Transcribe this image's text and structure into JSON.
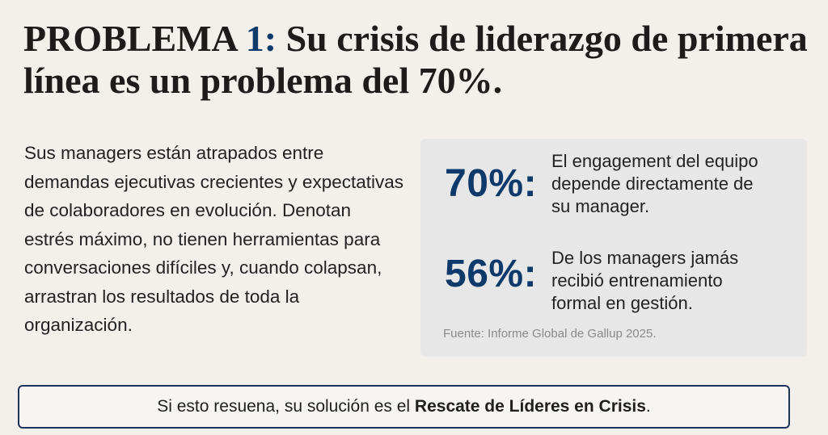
{
  "title": {
    "prefix": "PROBLEMA ",
    "number": "1:",
    "rest": " Su crisis de liderazgo de primera línea es un problema del 70%."
  },
  "body": "Sus managers están atrapados entre demandas ejecutivas crecientes y expectativas de colaboradores en evolución. Denotan estrés máximo, no tienen herramientas para conversaciones difíciles y, cuando colapsan, arrastran los resultados de toda la organización.",
  "stats": [
    {
      "value": "70%:",
      "description": "El engagement del equipo depende directamente de su manager."
    },
    {
      "value": "56%:",
      "description": "De los managers jamás recibió entrenamiento formal en gestión."
    }
  ],
  "source": "Fuente: Informe Global de Gallup 2025.",
  "cta": {
    "text": "Si esto resuena, su solución es el ",
    "highlight": "Rescate de Líderes en Crisis",
    "end": "."
  },
  "colors": {
    "accent": "#0d3a6b",
    "background": "#f3f0ec",
    "card": "#e7e7e7"
  }
}
